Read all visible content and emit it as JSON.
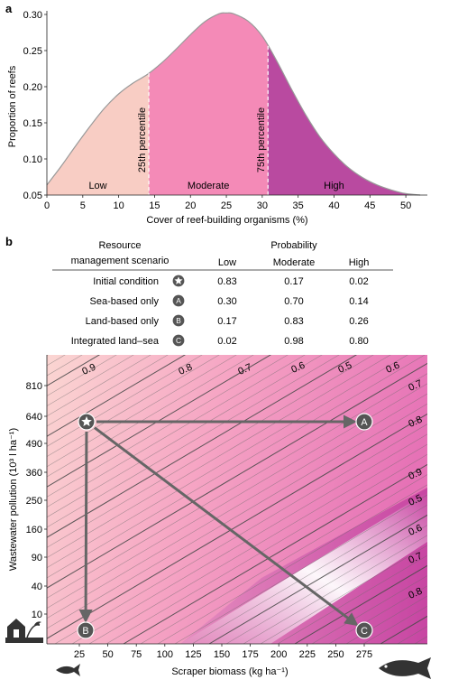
{
  "panel_a": {
    "label": "a",
    "chart_data": {
      "type": "area",
      "xlabel": "Cover of reef-building organisms (%)",
      "ylabel": "Proportion of reefs",
      "xlim": [
        0,
        53
      ],
      "ylim": [
        0.05,
        0.305
      ],
      "xticks": [
        "0",
        "5",
        "10",
        "15",
        "20",
        "25",
        "30",
        "35",
        "40",
        "45",
        "50"
      ],
      "yticks": [
        "0.05",
        "0.10",
        "0.15",
        "0.20",
        "0.25",
        "0.30"
      ],
      "x": [
        0,
        2,
        4,
        6,
        8,
        10,
        12,
        14,
        16,
        18,
        20,
        22,
        24,
        25,
        26,
        28,
        30,
        32,
        34,
        36,
        38,
        40,
        42,
        44,
        46,
        48,
        50,
        52
      ],
      "y": [
        0.064,
        0.09,
        0.118,
        0.145,
        0.17,
        0.19,
        0.205,
        0.217,
        0.233,
        0.252,
        0.272,
        0.29,
        0.301,
        0.302,
        0.301,
        0.291,
        0.27,
        0.236,
        0.198,
        0.162,
        0.131,
        0.107,
        0.088,
        0.074,
        0.064,
        0.057,
        0.052,
        0.05
      ],
      "percentile_lines": [
        {
          "x": 14.2,
          "label": "25th percentile"
        },
        {
          "x": 30.8,
          "label": "75th percentile"
        }
      ],
      "regions": [
        {
          "name": "Low",
          "from": 0,
          "to": 14.2,
          "color": "#f8cdc4"
        },
        {
          "name": "Moderate",
          "from": 14.2,
          "to": 30.8,
          "color": "#f48ab7"
        },
        {
          "name": "High",
          "from": 30.8,
          "to": 53,
          "color": "#b94aa0"
        }
      ]
    }
  },
  "panel_b": {
    "label": "b",
    "table": {
      "header_scenario": [
        "Resource",
        "management scenario"
      ],
      "header_probability": "Probability",
      "columns": [
        "Low",
        "Moderate",
        "High"
      ],
      "rows": [
        {
          "name": "Initial condition",
          "marker": "star",
          "values": [
            "0.83",
            "0.17",
            "0.02"
          ]
        },
        {
          "name": "Sea-based only",
          "marker": "A",
          "values": [
            "0.30",
            "0.70",
            "0.14"
          ]
        },
        {
          "name": "Land-based only",
          "marker": "B",
          "values": [
            "0.17",
            "0.83",
            "0.26"
          ]
        },
        {
          "name": "Integrated land–sea",
          "marker": "C",
          "values": [
            "0.02",
            "0.98",
            "0.80"
          ]
        }
      ]
    },
    "chart_data": {
      "type": "heatmap",
      "xlabel": "Scraper biomass (kg ha⁻¹)",
      "ylabel": "Wastewater pollution (10³ l ha⁻¹)",
      "xticks": [
        "25",
        "50",
        "75",
        "100",
        "125",
        "150",
        "175",
        "200",
        "225",
        "250",
        "275"
      ],
      "yticks": [
        "810",
        "640",
        "490",
        "360",
        "250",
        "160",
        "90",
        "40",
        "10"
      ],
      "contour_labels": [
        "0.9",
        "0.8",
        "0.7",
        "0.6",
        "0.5",
        "0.6",
        "0.7",
        "0.8",
        "0.9",
        "0.5",
        "0.6",
        "0.7",
        "0.8"
      ],
      "points": [
        {
          "marker": "star",
          "name": "Initial condition",
          "x": 30,
          "y": 600
        },
        {
          "marker": "A",
          "name": "Sea-based only",
          "x": 250,
          "y": 600
        },
        {
          "marker": "B",
          "name": "Land-based only",
          "x": 30,
          "y": 0
        },
        {
          "marker": "C",
          "name": "Integrated land–sea",
          "x": 250,
          "y": 0
        }
      ],
      "arrows": [
        {
          "from": "star",
          "to": "A"
        },
        {
          "from": "star",
          "to": "B"
        },
        {
          "from": "star",
          "to": "C"
        }
      ],
      "icons": [
        "house-icon",
        "small-fish-icon",
        "large-fish-icon"
      ]
    }
  }
}
